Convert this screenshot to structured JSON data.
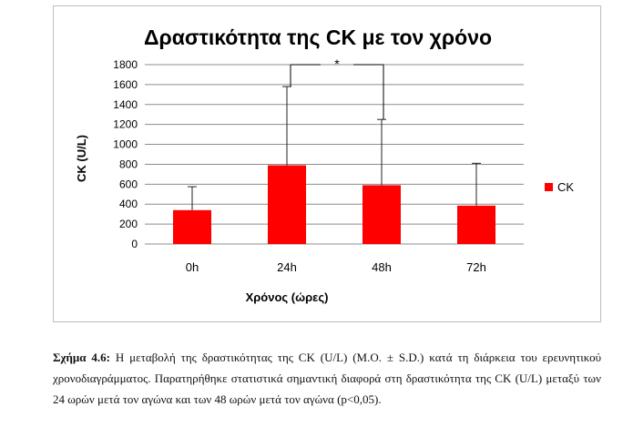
{
  "chart_data": {
    "type": "bar",
    "title": "Δραστικότητα της CK με τον χρόνο",
    "xlabel": "Χρόνος (ώρες)",
    "ylabel": "CK (U/L)",
    "categories": [
      "0h",
      "24h",
      "48h",
      "72h"
    ],
    "series": [
      {
        "name": "CK",
        "values": [
          340,
          790,
          590,
          385
        ],
        "errors": [
          235,
          790,
          660,
          425
        ]
      }
    ],
    "ylim": [
      0,
      1800
    ],
    "yticks": [
      "0",
      "200",
      "400",
      "600",
      "800",
      "1000",
      "1200",
      "1400",
      "1600",
      "1800"
    ],
    "grid": true,
    "legend": "right",
    "significance": {
      "from": "24h",
      "to": "48h",
      "label": "*"
    },
    "colors": {
      "bar": "#ff0000",
      "error": "#222222",
      "grid": "#8c8c8c"
    }
  },
  "caption": {
    "label": "Σχήμα 4.6:",
    "text": " Η μεταβολή της δραστικότητας της CK (U/L) (M.O. ± S.D.) κατά τη διάρκεια του ερευνητικού χρονοδιαγράμματος.  Παρατηρήθηκε στατιστικά σημαντική διαφορά στη δραστικότητα της CK (U/L) μεταξύ των 24 ωρών μετά τον αγώνα και των 48 ωρών μετά τον αγώνα (p<0,05)."
  }
}
